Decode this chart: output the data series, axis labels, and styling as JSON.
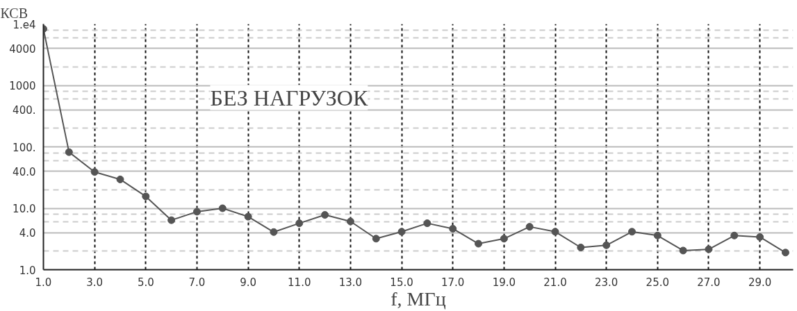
{
  "chart_data": {
    "type": "line",
    "ylabel": "КСВ",
    "xlabel": "f, МГц",
    "annotations": [
      "БЕЗ НАГРУЗОК"
    ],
    "x": [
      1,
      2,
      3,
      4,
      5,
      6,
      7,
      8,
      9,
      10,
      11,
      12,
      13,
      14,
      15,
      16,
      17,
      18,
      19,
      20,
      21,
      22,
      23,
      24,
      25,
      26,
      27,
      28,
      29,
      30
    ],
    "series": [
      {
        "color": "#555555",
        "values": [
          8300,
          82,
          39,
          29.5,
          15.6,
          6.4,
          8.8,
          10,
          7.3,
          4.1,
          5.7,
          7.8,
          6.1,
          3.2,
          4.15,
          5.7,
          4.65,
          2.65,
          3.2,
          5.0,
          4.15,
          2.3,
          2.5,
          4.15,
          3.6,
          2.05,
          2.15,
          3.6,
          3.4,
          1.9
        ]
      }
    ],
    "log": true,
    "xlim": [
      1,
      30.3
    ],
    "ylim": [
      1,
      10000
    ],
    "xticks": [
      {
        "value": 1,
        "label": "1.0"
      },
      {
        "value": 3,
        "label": "3.0"
      },
      {
        "value": 5,
        "label": "5.0"
      },
      {
        "value": 7,
        "label": "7.0"
      },
      {
        "value": 9,
        "label": "9.0"
      },
      {
        "value": 11,
        "label": "11.0"
      },
      {
        "value": 13,
        "label": "13.0"
      },
      {
        "value": 15,
        "label": "15.0"
      },
      {
        "value": 17,
        "label": "17.0"
      },
      {
        "value": 19,
        "label": "19.0"
      },
      {
        "value": 21,
        "label": "21.0"
      },
      {
        "value": 23,
        "label": "23.0"
      },
      {
        "value": 25,
        "label": "25.0"
      },
      {
        "value": 27,
        "label": "27.0"
      },
      {
        "value": 29,
        "label": "29.0"
      }
    ],
    "yticks": [
      {
        "value": 1,
        "label": "1.0"
      },
      {
        "value": 4,
        "label": "4.0"
      },
      {
        "value": 10,
        "label": "10.0"
      },
      {
        "value": 40,
        "label": "40.0"
      },
      {
        "value": 100,
        "label": "100."
      },
      {
        "value": 400,
        "label": "400."
      },
      {
        "value": 1000,
        "label": "1000"
      },
      {
        "value": 4000,
        "label": "4000"
      },
      {
        "value": 10000,
        "label": "1.e4"
      }
    ],
    "grid": true,
    "marker": "circle",
    "line_style": "solid"
  }
}
